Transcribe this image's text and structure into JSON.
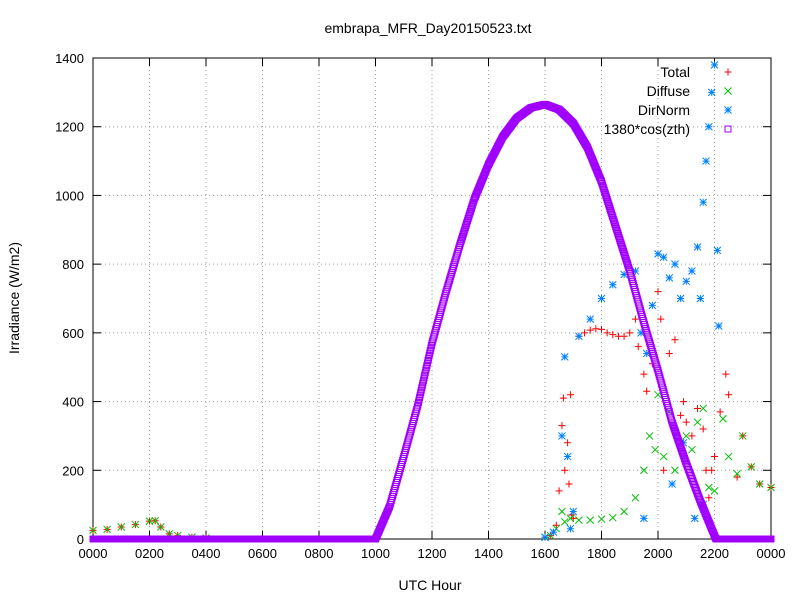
{
  "chart_data": {
    "type": "scatter",
    "title": "embrapa_MFR_Day20150523.txt",
    "xlabel": "UTC Hour",
    "ylabel": "Irradiance (W/m2)",
    "xlim": [
      0,
      24
    ],
    "ylim": [
      0,
      1400
    ],
    "xticks": [
      0,
      2,
      4,
      6,
      8,
      10,
      12,
      14,
      16,
      18,
      20,
      22,
      24
    ],
    "xtick_labels": [
      "0000",
      "0200",
      "0400",
      "0600",
      "0800",
      "1000",
      "1200",
      "1400",
      "1600",
      "1800",
      "2000",
      "2200",
      "0000"
    ],
    "yticks": [
      0,
      200,
      400,
      600,
      800,
      1000,
      1200,
      1400
    ],
    "ytick_labels": [
      "0",
      "200",
      "400",
      "600",
      "800",
      "1000",
      "1200",
      "1400"
    ],
    "grid": true,
    "legend_position": "top-right",
    "series": [
      {
        "name": "Total",
        "color": "#ff0000",
        "marker": "plus",
        "points": [
          [
            0.0,
            25
          ],
          [
            0.5,
            28
          ],
          [
            1.0,
            35
          ],
          [
            1.5,
            42
          ],
          [
            2.0,
            52
          ],
          [
            2.2,
            53
          ],
          [
            2.4,
            35
          ],
          [
            2.7,
            15
          ],
          [
            3.0,
            10
          ],
          [
            3.5,
            5
          ],
          [
            4.0,
            3
          ],
          [
            16.0,
            5
          ],
          [
            16.2,
            10
          ],
          [
            16.4,
            40
          ],
          [
            16.5,
            140
          ],
          [
            16.6,
            330
          ],
          [
            16.65,
            410
          ],
          [
            16.7,
            200
          ],
          [
            16.8,
            280
          ],
          [
            16.85,
            160
          ],
          [
            16.9,
            420
          ],
          [
            16.95,
            70
          ],
          [
            17.0,
            60
          ],
          [
            17.2,
            590
          ],
          [
            17.4,
            600
          ],
          [
            17.6,
            608
          ],
          [
            17.8,
            612
          ],
          [
            18.0,
            610
          ],
          [
            18.2,
            600
          ],
          [
            18.4,
            595
          ],
          [
            18.6,
            590
          ],
          [
            18.8,
            590
          ],
          [
            19.0,
            600
          ],
          [
            19.2,
            640
          ],
          [
            19.3,
            560
          ],
          [
            19.5,
            480
          ],
          [
            19.6,
            430
          ],
          [
            19.8,
            510
          ],
          [
            20.0,
            720
          ],
          [
            20.1,
            640
          ],
          [
            20.2,
            200
          ],
          [
            20.4,
            540
          ],
          [
            20.6,
            580
          ],
          [
            20.8,
            360
          ],
          [
            20.9,
            400
          ],
          [
            21.0,
            340
          ],
          [
            21.2,
            300
          ],
          [
            21.4,
            380
          ],
          [
            21.6,
            320
          ],
          [
            21.7,
            200
          ],
          [
            21.8,
            120
          ],
          [
            21.9,
            200
          ],
          [
            22.0,
            240
          ],
          [
            22.2,
            370
          ],
          [
            22.4,
            480
          ],
          [
            22.5,
            420
          ],
          [
            22.8,
            180
          ],
          [
            23.0,
            300
          ],
          [
            23.3,
            210
          ],
          [
            23.6,
            160
          ],
          [
            24.0,
            150
          ]
        ]
      },
      {
        "name": "Diffuse",
        "color": "#00c000",
        "marker": "cross",
        "points": [
          [
            0.0,
            25
          ],
          [
            0.5,
            28
          ],
          [
            1.0,
            35
          ],
          [
            1.5,
            42
          ],
          [
            2.0,
            52
          ],
          [
            2.2,
            53
          ],
          [
            2.4,
            35
          ],
          [
            2.7,
            15
          ],
          [
            3.0,
            10
          ],
          [
            3.5,
            5
          ],
          [
            4.0,
            3
          ],
          [
            16.0,
            5
          ],
          [
            16.2,
            10
          ],
          [
            16.4,
            30
          ],
          [
            16.6,
            80
          ],
          [
            16.7,
            50
          ],
          [
            16.9,
            60
          ],
          [
            17.2,
            55
          ],
          [
            17.6,
            55
          ],
          [
            18.0,
            58
          ],
          [
            18.4,
            62
          ],
          [
            18.8,
            80
          ],
          [
            19.2,
            120
          ],
          [
            19.5,
            200
          ],
          [
            19.7,
            300
          ],
          [
            19.9,
            260
          ],
          [
            20.0,
            420
          ],
          [
            20.2,
            240
          ],
          [
            20.4,
            370
          ],
          [
            20.6,
            200
          ],
          [
            20.8,
            280
          ],
          [
            21.0,
            300
          ],
          [
            21.2,
            260
          ],
          [
            21.4,
            340
          ],
          [
            21.6,
            380
          ],
          [
            21.8,
            150
          ],
          [
            22.0,
            140
          ],
          [
            22.3,
            350
          ],
          [
            22.5,
            240
          ],
          [
            22.8,
            190
          ],
          [
            23.0,
            300
          ],
          [
            23.3,
            210
          ],
          [
            23.6,
            160
          ],
          [
            24.0,
            150
          ]
        ]
      },
      {
        "name": "DirNorm",
        "color": "#0080ff",
        "marker": "star",
        "points": [
          [
            16.0,
            5
          ],
          [
            16.3,
            20
          ],
          [
            16.6,
            300
          ],
          [
            16.7,
            530
          ],
          [
            16.8,
            240
          ],
          [
            16.9,
            30
          ],
          [
            17.0,
            80
          ],
          [
            17.2,
            590
          ],
          [
            17.6,
            640
          ],
          [
            18.0,
            700
          ],
          [
            18.4,
            740
          ],
          [
            18.8,
            770
          ],
          [
            19.2,
            780
          ],
          [
            19.4,
            600
          ],
          [
            19.6,
            540
          ],
          [
            19.8,
            680
          ],
          [
            20.0,
            830
          ],
          [
            20.2,
            820
          ],
          [
            20.4,
            760
          ],
          [
            20.6,
            800
          ],
          [
            20.8,
            700
          ],
          [
            21.0,
            750
          ],
          [
            21.2,
            780
          ],
          [
            21.4,
            850
          ],
          [
            21.5,
            700
          ],
          [
            21.6,
            980
          ],
          [
            21.7,
            1100
          ],
          [
            21.8,
            1200
          ],
          [
            21.9,
            1300
          ],
          [
            22.0,
            1380
          ],
          [
            22.1,
            840
          ],
          [
            22.15,
            620
          ],
          [
            20.5,
            160
          ],
          [
            20.9,
            280
          ],
          [
            21.3,
            60
          ],
          [
            21.6,
            100
          ],
          [
            19.5,
            60
          ]
        ]
      },
      {
        "name": "1380*cos(zth)",
        "color": "#a000ff",
        "marker": "square",
        "curve": {
          "zero_before": 10.0,
          "zero_after": 22.05,
          "peak_x": 16.0,
          "peak_y": 1265,
          "points": [
            [
              10.0,
              0
            ],
            [
              10.5,
              95
            ],
            [
              11.0,
              240
            ],
            [
              11.5,
              390
            ],
            [
              12.0,
              570
            ],
            [
              12.5,
              720
            ],
            [
              13.0,
              860
            ],
            [
              13.5,
              990
            ],
            [
              14.0,
              1090
            ],
            [
              14.5,
              1170
            ],
            [
              15.0,
              1225
            ],
            [
              15.5,
              1255
            ],
            [
              16.0,
              1265
            ],
            [
              16.5,
              1250
            ],
            [
              17.0,
              1210
            ],
            [
              17.5,
              1140
            ],
            [
              18.0,
              1040
            ],
            [
              18.5,
              910
            ],
            [
              19.0,
              780
            ],
            [
              19.5,
              630
            ],
            [
              20.0,
              490
            ],
            [
              20.5,
              340
            ],
            [
              21.0,
              220
            ],
            [
              21.5,
              110
            ],
            [
              22.05,
              0
            ]
          ]
        }
      }
    ]
  }
}
